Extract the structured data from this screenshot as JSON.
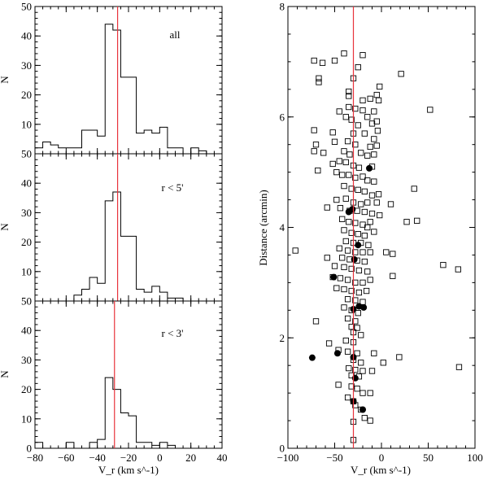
{
  "figure": {
    "description_free": true
  },
  "colors": {
    "axis": "#000000",
    "reference_line": "#e8333c",
    "open_marker": "#000000",
    "filled_marker": "#000000"
  },
  "chart_data": [
    {
      "type": "histogram",
      "panel": "top-left",
      "annotation": "all",
      "xlabel": "V_r (km s^-1)",
      "ylabel": "N",
      "xlim": [
        -80,
        40
      ],
      "ylim": [
        0,
        50
      ],
      "x_ticks": [
        -80,
        -60,
        -40,
        -20,
        0,
        20,
        40
      ],
      "y_ticks": [
        0,
        10,
        20,
        30,
        40,
        50
      ],
      "y_tick_labels": [
        "",
        "10",
        "20",
        "30",
        "40",
        "50"
      ],
      "reference_line_x": -27,
      "bin_edges": [
        -80,
        -75,
        -70,
        -65,
        -60,
        -55,
        -50,
        -45,
        -40,
        -35,
        -30,
        -25,
        -20,
        -15,
        -10,
        -5,
        0,
        5,
        10,
        15,
        20,
        25,
        30,
        35,
        40
      ],
      "counts": [
        2,
        4,
        3,
        2,
        2,
        2,
        8,
        8,
        6,
        44,
        42,
        26,
        26,
        7,
        8,
        7,
        9,
        2,
        2,
        0,
        2,
        1,
        0,
        0
      ]
    },
    {
      "type": "histogram",
      "panel": "middle-left",
      "annotation": "r < 5'",
      "xlabel": "V_r (km s^-1)",
      "ylabel": "N",
      "xlim": [
        -80,
        40
      ],
      "ylim": [
        0,
        50
      ],
      "x_ticks": [
        -80,
        -60,
        -40,
        -20,
        0,
        20,
        40
      ],
      "y_ticks": [
        0,
        10,
        20,
        30,
        40,
        50
      ],
      "y_tick_labels": [
        "",
        "10",
        "20",
        "30",
        "40",
        "50"
      ],
      "reference_line_x": -27,
      "bin_edges": [
        -80,
        -75,
        -70,
        -65,
        -60,
        -55,
        -50,
        -45,
        -40,
        -35,
        -30,
        -25,
        -20,
        -15,
        -10,
        -5,
        0,
        5,
        10,
        15,
        20,
        25,
        30,
        35,
        40
      ],
      "counts": [
        0,
        0,
        0,
        0,
        0,
        2,
        4,
        8,
        6,
        34,
        37,
        22,
        22,
        4,
        3,
        5,
        3,
        1,
        1,
        0,
        0,
        0,
        0,
        0
      ]
    },
    {
      "type": "histogram",
      "panel": "bottom-left",
      "annotation": "r < 3'",
      "xlabel": "V_r (km s^-1)",
      "ylabel": "N",
      "xlim": [
        -80,
        40
      ],
      "ylim": [
        0,
        50
      ],
      "x_ticks": [
        -80,
        -60,
        -40,
        -20,
        0,
        20,
        40
      ],
      "x_tick_labels": [
        "−80",
        "−60",
        "−40",
        "−20",
        "0",
        "20",
        "40"
      ],
      "y_ticks": [
        0,
        10,
        20,
        30,
        40,
        50
      ],
      "y_tick_labels": [
        "0",
        "10",
        "20",
        "30",
        "40",
        "50"
      ],
      "reference_line_x": -29,
      "bin_edges": [
        -80,
        -75,
        -70,
        -65,
        -60,
        -55,
        -50,
        -45,
        -40,
        -35,
        -30,
        -25,
        -20,
        -15,
        -10,
        -5,
        0,
        5,
        10,
        15,
        20,
        25,
        30,
        35,
        40
      ],
      "counts": [
        2,
        0,
        0,
        0,
        2,
        0,
        0,
        2,
        3,
        24,
        20,
        12,
        11,
        2,
        2,
        1,
        2,
        1,
        0,
        0,
        0,
        0,
        0,
        0
      ]
    },
    {
      "type": "scatter",
      "panel": "right",
      "xlabel": "V_r (km s^-1)",
      "ylabel": "Distance (arcmin)",
      "xlim": [
        -100,
        100
      ],
      "ylim": [
        0,
        8
      ],
      "x_ticks": [
        -100,
        -50,
        0,
        50,
        100
      ],
      "x_tick_labels": [
        "−100",
        "−50",
        "0",
        "50",
        "100"
      ],
      "y_ticks": [
        0,
        2,
        4,
        6,
        8
      ],
      "y_tick_labels": [
        "0",
        "2",
        "4",
        "6",
        "8"
      ],
      "reference_line_x": -30,
      "series": [
        {
          "name": "open squares",
          "marker": "square-open",
          "points": [
            [
              -72,
              7.02
            ],
            [
              -63,
              6.98
            ],
            [
              -50,
              7.02
            ],
            [
              -40,
              7.15
            ],
            [
              -20,
              7.12
            ],
            [
              -25,
              6.9
            ],
            [
              -67,
              6.7
            ],
            [
              -67,
              6.63
            ],
            [
              -30,
              6.7
            ],
            [
              -2,
              6.55
            ],
            [
              21,
              6.78
            ],
            [
              -35,
              6.46
            ],
            [
              -35,
              6.38
            ],
            [
              -20,
              6.3
            ],
            [
              -12,
              6.33
            ],
            [
              -5,
              6.4
            ],
            [
              -3,
              6.3
            ],
            [
              -35,
              6.18
            ],
            [
              -28,
              6.15
            ],
            [
              -20,
              6.12
            ],
            [
              -15,
              6.0
            ],
            [
              52,
              6.13
            ],
            [
              -45,
              6.1
            ],
            [
              -38,
              6.0
            ],
            [
              -32,
              5.95
            ],
            [
              -25,
              5.85
            ],
            [
              -10,
              5.88
            ],
            [
              -5,
              5.92
            ],
            [
              -72,
              5.76
            ],
            [
              -52,
              5.72
            ],
            [
              -30,
              5.7
            ],
            [
              -18,
              5.7
            ],
            [
              -8,
              5.6
            ],
            [
              -70,
              5.5
            ],
            [
              -50,
              5.55
            ],
            [
              -36,
              5.56
            ],
            [
              -28,
              5.5
            ],
            [
              -12,
              5.46
            ],
            [
              -5,
              5.48
            ],
            [
              -72,
              5.38
            ],
            [
              -62,
              5.35
            ],
            [
              -40,
              5.38
            ],
            [
              -34,
              5.32
            ],
            [
              -22,
              5.35
            ],
            [
              -15,
              5.3
            ],
            [
              -8,
              5.32
            ],
            [
              -52,
              5.15
            ],
            [
              -45,
              5.2
            ],
            [
              -38,
              5.18
            ],
            [
              -30,
              5.12
            ],
            [
              -24,
              5.08
            ],
            [
              -10,
              5.1
            ],
            [
              -68,
              5.03
            ],
            [
              -48,
              5.0
            ],
            [
              -42,
              4.95
            ],
            [
              -35,
              4.95
            ],
            [
              -28,
              4.9
            ],
            [
              -20,
              4.92
            ],
            [
              -15,
              4.85
            ],
            [
              -8,
              4.83
            ],
            [
              -40,
              4.75
            ],
            [
              -32,
              4.7
            ],
            [
              -25,
              4.68
            ],
            [
              -18,
              4.65
            ],
            [
              -10,
              4.58
            ],
            [
              -3,
              4.6
            ],
            [
              35,
              4.7
            ],
            [
              -48,
              4.5
            ],
            [
              -38,
              4.52
            ],
            [
              -30,
              4.45
            ],
            [
              -22,
              4.42
            ],
            [
              -15,
              4.45
            ],
            [
              -5,
              4.45
            ],
            [
              10,
              4.42
            ],
            [
              -58,
              4.36
            ],
            [
              -44,
              4.35
            ],
            [
              -34,
              4.3
            ],
            [
              -26,
              4.3
            ],
            [
              -18,
              4.28
            ],
            [
              -10,
              4.25
            ],
            [
              -2,
              4.22
            ],
            [
              -42,
              4.15
            ],
            [
              -35,
              4.1
            ],
            [
              -28,
              4.08
            ],
            [
              -20,
              4.05
            ],
            [
              -12,
              4.1
            ],
            [
              27,
              4.1
            ],
            [
              38,
              4.12
            ],
            [
              -40,
              3.95
            ],
            [
              -32,
              3.9
            ],
            [
              -25,
              3.88
            ],
            [
              -18,
              3.85
            ],
            [
              -8,
              3.92
            ],
            [
              -38,
              3.75
            ],
            [
              -30,
              3.72
            ],
            [
              -22,
              3.72
            ],
            [
              -14,
              3.68
            ],
            [
              -45,
              3.62
            ],
            [
              -36,
              3.58
            ],
            [
              -28,
              3.55
            ],
            [
              -20,
              3.55
            ],
            [
              -12,
              3.55
            ],
            [
              5,
              3.55
            ],
            [
              12,
              3.52
            ],
            [
              -92,
              3.58
            ],
            [
              -58,
              3.45
            ],
            [
              -42,
              3.45
            ],
            [
              -34,
              3.42
            ],
            [
              -26,
              3.4
            ],
            [
              -18,
              3.38
            ],
            [
              -50,
              3.3
            ],
            [
              -40,
              3.28
            ],
            [
              -32,
              3.25
            ],
            [
              -24,
              3.22
            ],
            [
              -15,
              3.2
            ],
            [
              66,
              3.32
            ],
            [
              82,
              3.24
            ],
            [
              -52,
              3.1
            ],
            [
              -44,
              3.08
            ],
            [
              -36,
              3.05
            ],
            [
              -28,
              3.0
            ],
            [
              -20,
              3.0
            ],
            [
              -12,
              3.05
            ],
            [
              12,
              3.12
            ],
            [
              -48,
              2.9
            ],
            [
              -40,
              2.88
            ],
            [
              -32,
              2.85
            ],
            [
              -24,
              2.82
            ],
            [
              -16,
              2.85
            ],
            [
              -36,
              2.7
            ],
            [
              -28,
              2.68
            ],
            [
              -20,
              2.65
            ],
            [
              -40,
              2.55
            ],
            [
              -32,
              2.5
            ],
            [
              -25,
              2.45
            ],
            [
              -70,
              2.3
            ],
            [
              -36,
              2.35
            ],
            [
              -28,
              2.3
            ],
            [
              -32,
              2.2
            ],
            [
              -26,
              2.18
            ],
            [
              -30,
              2.1
            ],
            [
              -22,
              2.05
            ],
            [
              -38,
              1.95
            ],
            [
              -30,
              1.92
            ],
            [
              -56,
              1.9
            ],
            [
              -46,
              1.78
            ],
            [
              -36,
              1.75
            ],
            [
              -26,
              1.72
            ],
            [
              -8,
              1.72
            ],
            [
              -30,
              1.6
            ],
            [
              -22,
              1.55
            ],
            [
              2,
              1.55
            ],
            [
              19,
              1.65
            ],
            [
              -35,
              1.45
            ],
            [
              -28,
              1.42
            ],
            [
              -20,
              1.4
            ],
            [
              -10,
              1.4
            ],
            [
              -32,
              1.32
            ],
            [
              -24,
              1.3
            ],
            [
              -46,
              1.15
            ],
            [
              -32,
              1.12
            ],
            [
              -26,
              1.08
            ],
            [
              -20,
              1.0
            ],
            [
              -12,
              1.0
            ],
            [
              -36,
              0.92
            ],
            [
              -30,
              0.85
            ],
            [
              -28,
              0.78
            ],
            [
              -22,
              0.7
            ],
            [
              -18,
              0.55
            ],
            [
              -30,
              0.48
            ],
            [
              -12,
              0.5
            ],
            [
              -30,
              0.15
            ],
            [
              83,
              1.47
            ],
            [
              -15,
              4.0
            ],
            [
              -4,
              5.75
            ],
            [
              -8,
              6.1
            ]
          ]
        },
        {
          "name": "filled circles",
          "marker": "circle-filled",
          "points": [
            [
              -31,
              4.33
            ],
            [
              -35,
              4.28
            ],
            [
              -13,
              5.07
            ],
            [
              -25,
              3.68
            ],
            [
              -29,
              3.42
            ],
            [
              -51,
              3.1
            ],
            [
              -30,
              2.52
            ],
            [
              -24,
              2.57
            ],
            [
              -19,
              2.55
            ],
            [
              -30,
              1.65
            ],
            [
              -28,
              1.27
            ],
            [
              -47,
              1.72
            ],
            [
              -74,
              1.64
            ],
            [
              -30,
              0.85
            ],
            [
              -20,
              0.7
            ]
          ]
        }
      ]
    }
  ]
}
